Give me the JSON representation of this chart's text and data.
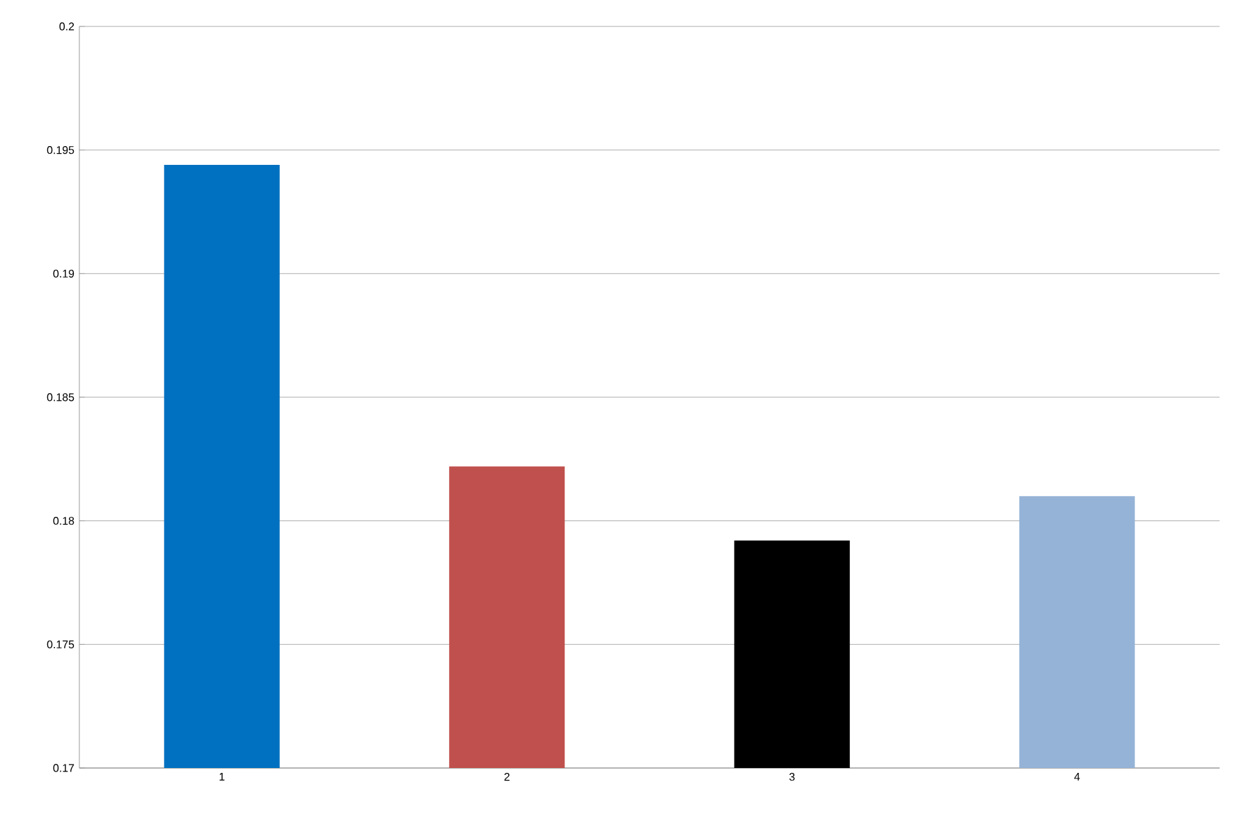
{
  "chart_data": {
    "type": "bar",
    "categories": [
      "1",
      "2",
      "3",
      "4"
    ],
    "values": [
      0.1944,
      0.1822,
      0.1792,
      0.181
    ],
    "colors": [
      "#0070c0",
      "#c0504d",
      "#000000",
      "#95b3d7"
    ],
    "ylim": [
      0.17,
      0.2
    ],
    "yticks": [
      0.17,
      0.175,
      0.18,
      0.185,
      0.19,
      0.195,
      0.2
    ],
    "grid": "y"
  }
}
